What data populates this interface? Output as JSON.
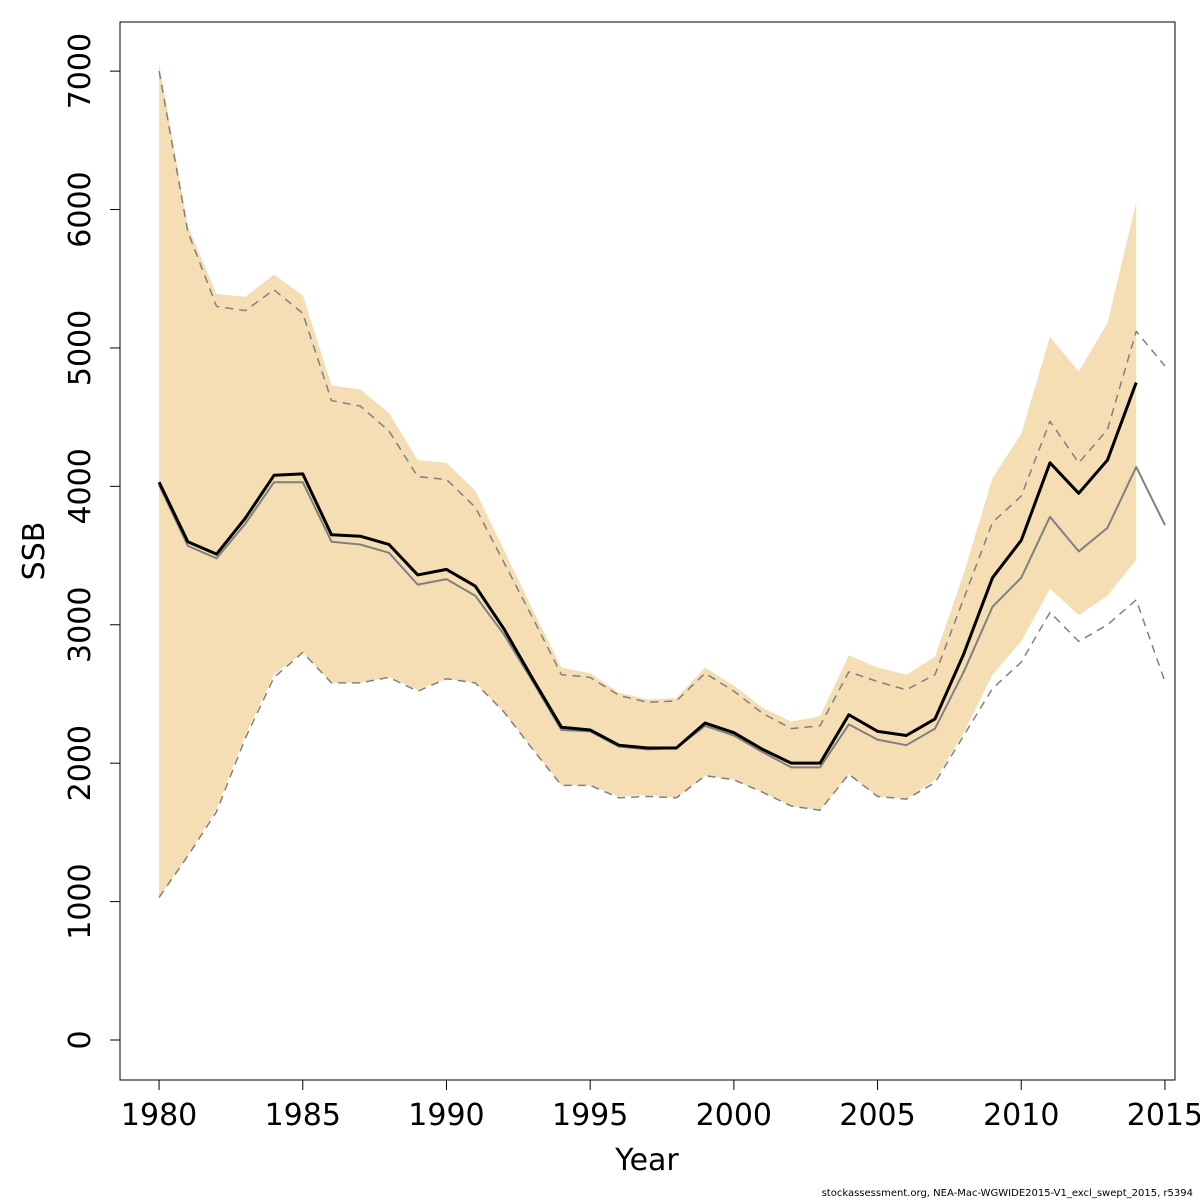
{
  "chart_data": {
    "type": "line",
    "x_label": "Year",
    "y_label": "SSB",
    "footnote": "stockassessment.org, NEA-Mac-WGWIDE2015-V1_excl_swept_2015, r5394",
    "x": [
      1980,
      1981,
      1982,
      1983,
      1984,
      1985,
      1986,
      1987,
      1988,
      1989,
      1990,
      1991,
      1992,
      1993,
      1994,
      1995,
      1996,
      1997,
      1998,
      1999,
      2000,
      2001,
      2002,
      2003,
      2004,
      2005,
      2006,
      2007,
      2008,
      2009,
      2010,
      2011,
      2012,
      2013,
      2014,
      2015
    ],
    "band": {
      "color": "#f5deb3",
      "upper": [
        7060,
        5880,
        5390,
        5370,
        5530,
        5380,
        4730,
        4700,
        4530,
        4190,
        4170,
        3970,
        3540,
        3110,
        2690,
        2650,
        2510,
        2460,
        2470,
        2690,
        2560,
        2400,
        2300,
        2340,
        2780,
        2690,
        2640,
        2770,
        3370,
        4060,
        4380,
        5080,
        4830,
        5180,
        6050,
        null
      ],
      "lower": [
        1030,
        1330,
        1670,
        2200,
        2640,
        2800,
        2580,
        2580,
        2620,
        2530,
        2610,
        2580,
        2370,
        2100,
        1840,
        1840,
        1760,
        1770,
        1750,
        1910,
        1880,
        1790,
        1690,
        1660,
        1920,
        1760,
        1740,
        1880,
        2220,
        2640,
        2880,
        3260,
        3070,
        3210,
        3470,
        null
      ]
    },
    "series": [
      {
        "color": "#808080",
        "dash": true,
        "width": 1.5,
        "values": [
          7000,
          5840,
          5300,
          5270,
          5420,
          5250,
          4620,
          4580,
          4400,
          4070,
          4050,
          3850,
          3450,
          3050,
          2640,
          2620,
          2490,
          2440,
          2450,
          2650,
          2520,
          2360,
          2250,
          2270,
          2660,
          2590,
          2530,
          2640,
          3190,
          3740,
          3930,
          4470,
          4170,
          4410,
          5120,
          4870
        ]
      },
      {
        "color": "#808080",
        "dash": true,
        "width": 1.5,
        "values": [
          1030,
          1330,
          1650,
          2180,
          2620,
          2800,
          2580,
          2580,
          2620,
          2520,
          2610,
          2580,
          2370,
          2100,
          1840,
          1840,
          1750,
          1760,
          1750,
          1910,
          1880,
          1790,
          1690,
          1660,
          1920,
          1760,
          1740,
          1860,
          2200,
          2540,
          2730,
          3090,
          2880,
          3000,
          3180,
          2590
        ]
      },
      {
        "color": "#808080",
        "dash": false,
        "width": 2,
        "values": [
          4010,
          3570,
          3480,
          3730,
          4030,
          4030,
          3600,
          3580,
          3520,
          3290,
          3330,
          3210,
          2930,
          2590,
          2240,
          2230,
          2120,
          2100,
          2110,
          2270,
          2200,
          2080,
          1970,
          1970,
          2280,
          2170,
          2130,
          2250,
          2660,
          3130,
          3340,
          3780,
          3530,
          3700,
          4140,
          3720
        ]
      },
      {
        "color": "#000000",
        "dash": false,
        "width": 3,
        "values": [
          4030,
          3600,
          3510,
          3770,
          4080,
          4090,
          3650,
          3640,
          3580,
          3360,
          3400,
          3280,
          2970,
          2610,
          2260,
          2240,
          2130,
          2110,
          2110,
          2290,
          2220,
          2100,
          2000,
          2000,
          2350,
          2230,
          2200,
          2320,
          2790,
          3340,
          3610,
          4170,
          3950,
          4190,
          4750,
          null
        ]
      }
    ],
    "xlim": [
      1978.64,
      2015.35
    ],
    "ylim": [
      -289,
      7355
    ],
    "xticks": [
      1980,
      1985,
      1990,
      1995,
      2000,
      2005,
      2010,
      2015
    ],
    "yticks": [
      0,
      1000,
      2000,
      3000,
      4000,
      5000,
      6000,
      7000
    ]
  }
}
